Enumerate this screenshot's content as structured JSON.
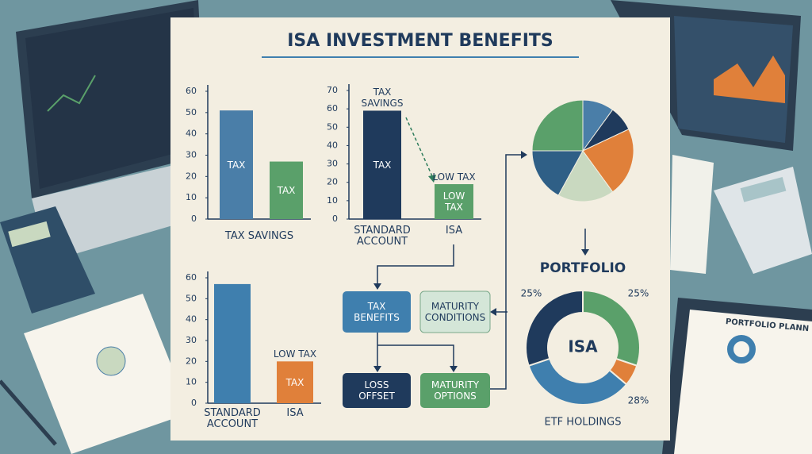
{
  "title": "ISA INVESTMENT BENEFITS",
  "chart_data": [
    {
      "type": "bar",
      "x_label": "TAX SAVINGS",
      "categories": [
        null,
        null
      ],
      "values": [
        51,
        27
      ],
      "bar_labels": [
        "TAX",
        "TAX"
      ],
      "colors": [
        "#4a7ea8",
        "#5aa06a"
      ],
      "ylim": [
        0,
        60
      ],
      "yticks": [
        0,
        10,
        20,
        30,
        40,
        50,
        60
      ],
      "grid": false
    },
    {
      "type": "bar",
      "categories": [
        "STANDARD ACCOUNT",
        "ISA"
      ],
      "values": [
        59,
        19
      ],
      "bar_labels": [
        "TAX",
        "LOW TAX"
      ],
      "annotations": [
        "TAX SAVINGS",
        "LOW TAX"
      ],
      "colors": [
        "#1f3a5c",
        "#5aa06a"
      ],
      "ylim": [
        0,
        70
      ],
      "yticks": [
        0,
        10,
        20,
        30,
        40,
        50,
        60,
        70
      ],
      "grid": false
    },
    {
      "type": "bar",
      "categories": [
        "STANDARD ACCOUNT",
        "ISA"
      ],
      "values": [
        57,
        20
      ],
      "bar_labels": [
        null,
        "TAX"
      ],
      "annotations": [
        null,
        "LOW TAX"
      ],
      "colors": [
        "#3f7fae",
        "#e0803a"
      ],
      "ylim": [
        0,
        60
      ],
      "yticks": [
        0,
        10,
        20,
        30,
        40,
        50,
        60
      ],
      "grid": false
    },
    {
      "type": "pie",
      "values": [
        10,
        8,
        22,
        18,
        17,
        25
      ],
      "colors": [
        "#4a7ea8",
        "#1f3a5c",
        "#e0803a",
        "#c9d9c0",
        "#2f5f86",
        "#5aa06a"
      ]
    },
    {
      "type": "donut",
      "title": "PORTFOLIO",
      "center_label": "ISA",
      "caption": "ETF HOLDINGS",
      "values": [
        25,
        5,
        28,
        25
      ],
      "value_labels": [
        "25%",
        null,
        "28%",
        "25%"
      ],
      "colors": [
        "#5aa06a",
        "#e0803a",
        "#3f7fae",
        "#1f3a5c"
      ]
    }
  ],
  "flow": {
    "nodes": [
      {
        "label": "TAX BENEFITS"
      },
      {
        "label": "MATURITY CONDITIONS"
      },
      {
        "label": "LOSS OFFSET"
      },
      {
        "label": "MATURITY OPTIONS"
      }
    ]
  },
  "decor": {
    "clipboard_title": "PORTFOLIO PLANN"
  }
}
